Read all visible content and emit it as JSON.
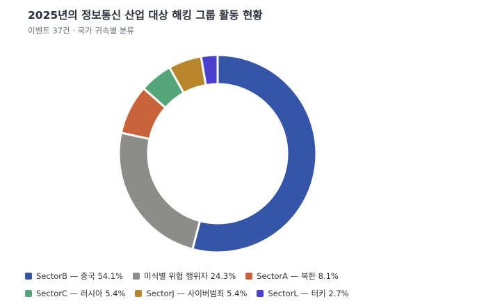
{
  "header": {
    "title": "2025년의 정보통신 산업 대상 해킹 그룹 활동 현황",
    "subtitle": "이벤트 37건 · 국가 귀속별 분류"
  },
  "chart_data": {
    "type": "pie",
    "style": "donut",
    "legend_position": "bottom",
    "slices": [
      {
        "label": "SectorB — 중국 54.1%",
        "value": 54.1,
        "color": "#3556a8"
      },
      {
        "label": "미식별 위협 행위자 24.3%",
        "value": 24.3,
        "color": "#8c8c8a"
      },
      {
        "label": "SectorA — 북한 8.1%",
        "value": 8.1,
        "color": "#c8633a"
      },
      {
        "label": "SectorC — 러시아 5.4%",
        "value": 5.4,
        "color": "#55a57a"
      },
      {
        "label": "SectorJ — 사이버범죄 5.4%",
        "value": 5.4,
        "color": "#b8862d"
      },
      {
        "label": "SectorL — 터키 2.7%",
        "value": 2.7,
        "color": "#4b3fcf"
      }
    ]
  }
}
